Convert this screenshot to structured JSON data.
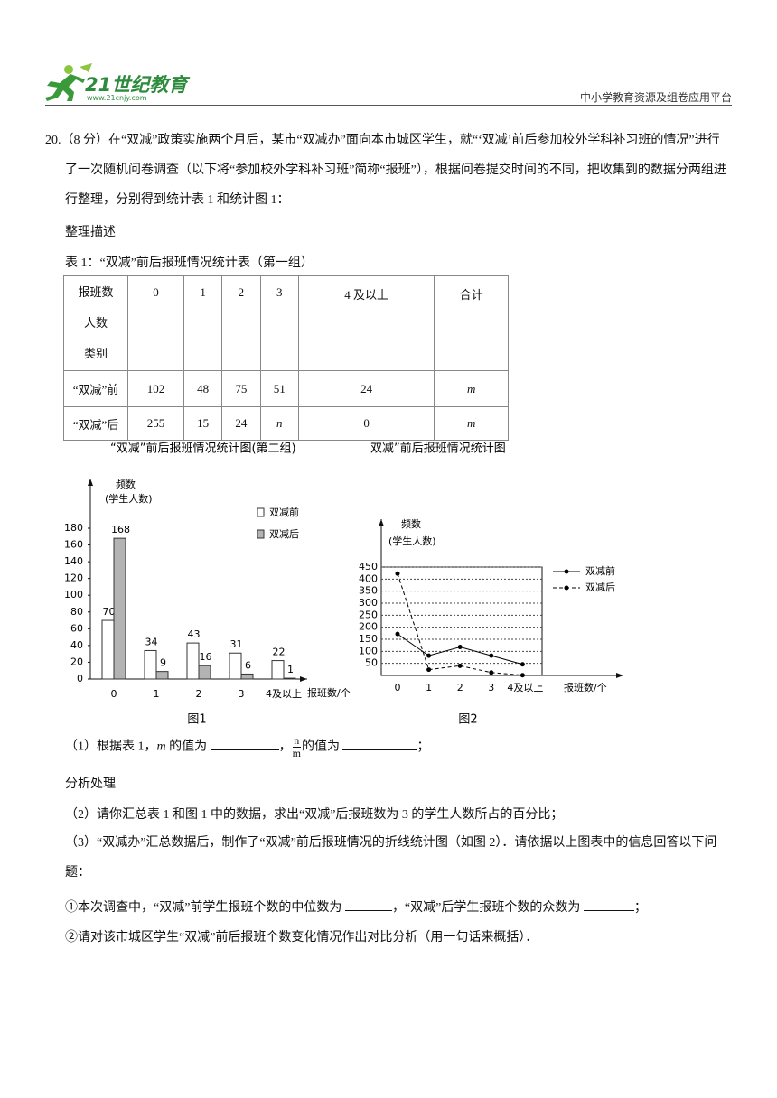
{
  "header": {
    "logo_text": "21世纪教育",
    "logo_url": "www.21cnjy.com",
    "platform": "中小学教育资源及组卷应用平台"
  },
  "question": {
    "intro": "20.（8 分）在“双减”政策实施两个月后，某市“双减办”面向本市城区学生，就“‘双减’前后参加校外学科补习班的情况”进行了一次随机问卷调查（以下将“参加校外学科补习班”简称“报班”），根据问卷提交时间的不同，把收集到的数据分两组进行整理，分别得到统计表 1 和统计图 1：",
    "section1": "整理描述",
    "table_caption": "表 1：“双减”前后报班情况统计表（第一组）",
    "section2": "分析处理",
    "q1_parts": [
      "（1）根据表 1，",
      "m",
      " 的值为 ",
      "，",
      "n",
      "m",
      "的值为 ",
      "；"
    ],
    "q2": "（2）请你汇总表 1 和图 1 中的数据，求出“双减”后报班数为 3 的学生人数所占的百分比；",
    "q3": "（3）“双减办”汇总数据后，制作了“双减”前后报班情况的折线统计图（如图 2）．请依据以上图表中的信息回答以下问题：",
    "q3a_parts": [
      "①本次调查中，“双减”前学生报班个数的中位数为 ",
      "，“双减”后学生报班个数的众数为 ",
      "；"
    ],
    "q3b": "②请对该市城区学生“双减”前后报班个数变化情况作出对比分析（用一句话来概括）．"
  },
  "table": {
    "corner": [
      "报班数",
      "人数",
      "类别"
    ],
    "header": [
      "0",
      "1",
      "2",
      "3",
      "4 及以上",
      "合计"
    ],
    "rows": [
      [
        "“双减”前",
        "102",
        "48",
        "75",
        "51",
        "24",
        "m"
      ],
      [
        "“双减”后",
        "255",
        "15",
        "24",
        "n",
        "0",
        "m"
      ]
    ]
  },
  "figure1": {
    "type": "bar",
    "title": "“双减”前后报班情况统计图(第二组)",
    "caption": "图1",
    "y_label": [
      "频数",
      "(学生人数)"
    ],
    "x_label": "报班数/个",
    "categories": [
      "0",
      "1",
      "2",
      "3",
      "4及以上"
    ],
    "ylim": [
      0,
      180
    ],
    "yticks": [
      0,
      20,
      40,
      60,
      80,
      100,
      120,
      140,
      160,
      180
    ],
    "series": [
      {
        "name": "双减前",
        "color": "#ffffff",
        "values": [
          70,
          34,
          43,
          31,
          22
        ]
      },
      {
        "name": "双减后",
        "color": "#b3b3b3",
        "values": [
          168,
          9,
          16,
          6,
          1
        ]
      }
    ]
  },
  "figure2": {
    "type": "line",
    "title": "双减”前后报班情况统计图",
    "caption": "图2",
    "y_label": [
      "频数",
      "(学生人数)"
    ],
    "x_label": "报班数/个",
    "categories": [
      "0",
      "1",
      "2",
      "3",
      "4及以上"
    ],
    "ylim": [
      0,
      450
    ],
    "yticks": [
      50,
      100,
      150,
      200,
      250,
      300,
      350,
      400,
      450
    ],
    "grid": true,
    "series": [
      {
        "name": "双减前",
        "color": "#000000",
        "line_style": "solid",
        "values": [
          172,
          82,
          118,
          82,
          46
        ]
      },
      {
        "name": "双减后",
        "color": "#000000",
        "line_style": "dashed",
        "values": [
          423,
          24,
          40,
          12,
          1
        ]
      }
    ]
  }
}
